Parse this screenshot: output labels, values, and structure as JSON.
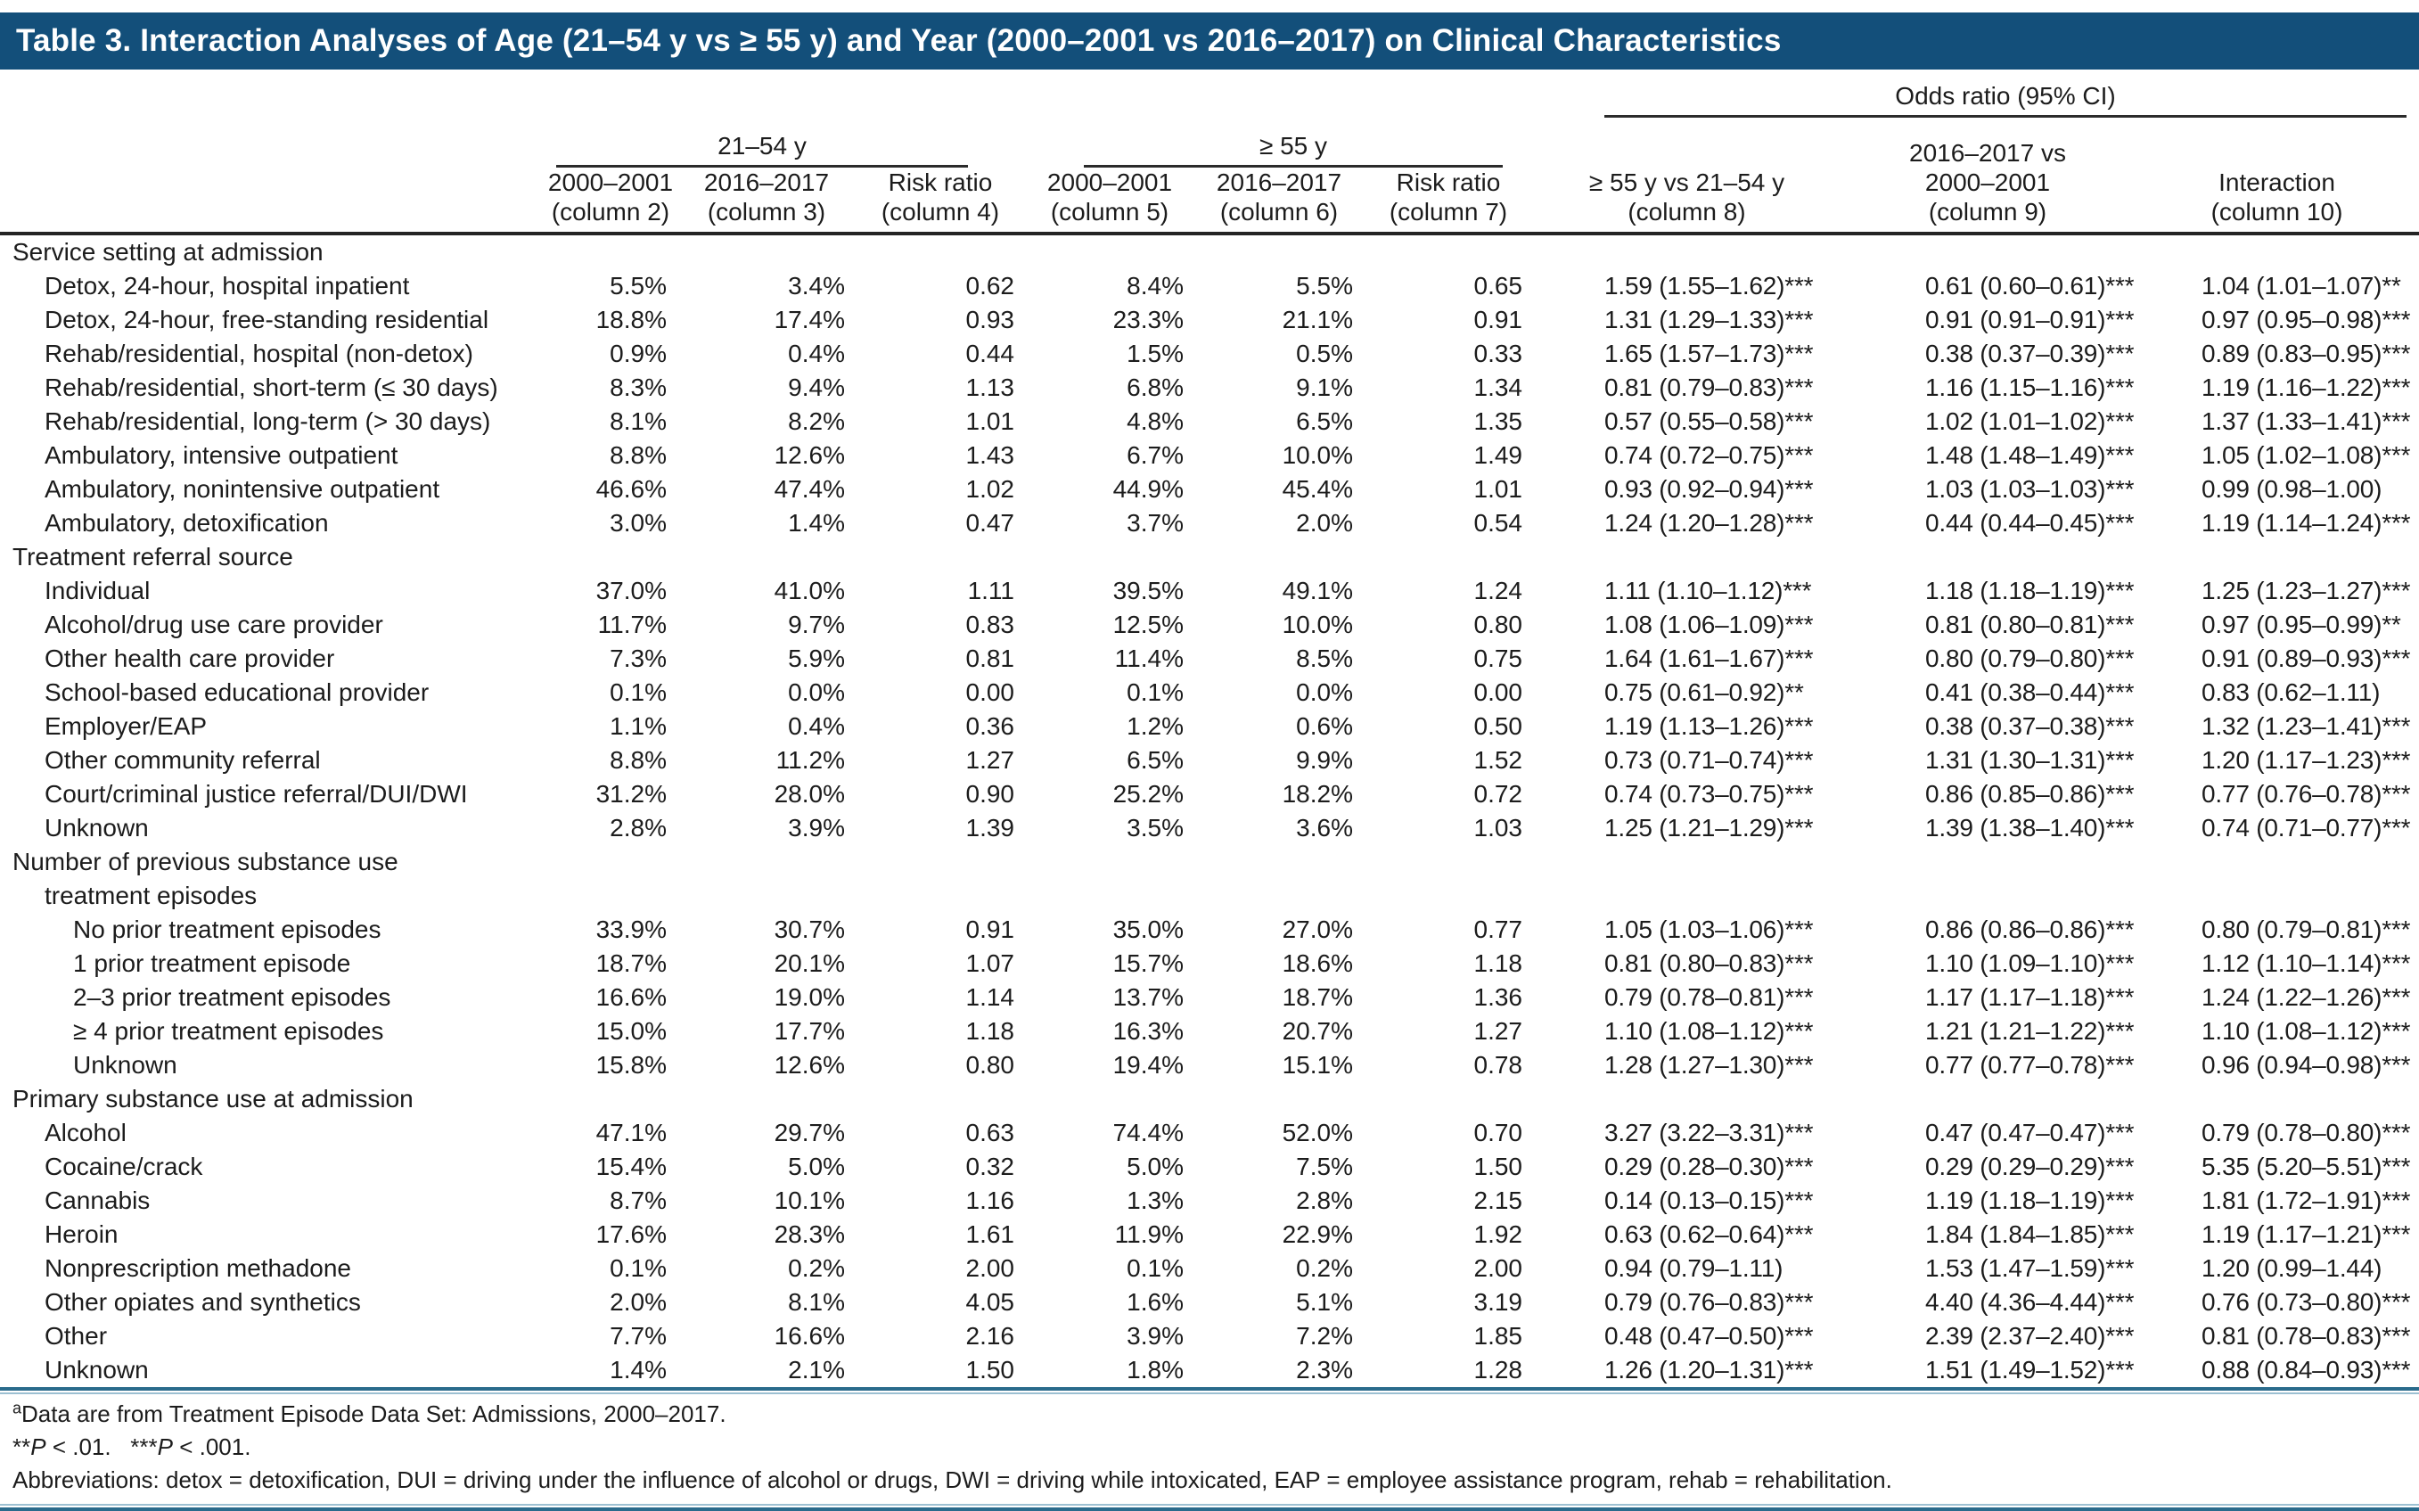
{
  "title": "Table 3. Interaction Analyses of Age (21–54 y vs ≥ 55 y) and Year (2000–2001 vs 2016–2017) on Clinical Characteristics",
  "header": {
    "odds_ratio_group": "Odds ratio (95% CI)",
    "age_group_21_54": "21–54 y",
    "age_group_55": "≥ 55 y",
    "columns": [
      {
        "lines": [
          "2000–2001",
          "(column 2)"
        ]
      },
      {
        "lines": [
          "2016–2017",
          "(column 3)"
        ]
      },
      {
        "lines": [
          "Risk ratio",
          "(column 4)"
        ]
      },
      {
        "lines": [
          "2000–2001",
          "(column 5)"
        ]
      },
      {
        "lines": [
          "2016–2017",
          "(column 6)"
        ]
      },
      {
        "lines": [
          "Risk ratio",
          "(column 7)"
        ]
      },
      {
        "lines": [
          "≥ 55 y vs 21–54 y",
          "(column 8)"
        ]
      },
      {
        "lines": [
          "2016–2017 vs",
          "2000–2001",
          "(column 9)"
        ]
      },
      {
        "lines": [
          "Interaction",
          "(column 10)"
        ]
      }
    ]
  },
  "sections": [
    {
      "label_lines": [
        "Service setting at admission"
      ],
      "row_indent": 1,
      "rows": [
        {
          "label": "Detox, 24-hour, hospital inpatient",
          "values": [
            "5.5%",
            "3.4%",
            "0.62",
            "8.4%",
            "5.5%",
            "0.65",
            "1.59 (1.55–1.62)***",
            "0.61 (0.60–0.61)***",
            "1.04 (1.01–1.07)**"
          ]
        },
        {
          "label": "Detox, 24-hour, free-standing residential",
          "values": [
            "18.8%",
            "17.4%",
            "0.93",
            "23.3%",
            "21.1%",
            "0.91",
            "1.31 (1.29–1.33)***",
            "0.91 (0.91–0.91)***",
            "0.97 (0.95–0.98)***"
          ]
        },
        {
          "label": "Rehab/residential, hospital (non-detox)",
          "values": [
            "0.9%",
            "0.4%",
            "0.44",
            "1.5%",
            "0.5%",
            "0.33",
            "1.65 (1.57–1.73)***",
            "0.38 (0.37–0.39)***",
            "0.89 (0.83–0.95)***"
          ]
        },
        {
          "label": "Rehab/residential, short-term (≤ 30 days)",
          "values": [
            "8.3%",
            "9.4%",
            "1.13",
            "6.8%",
            "9.1%",
            "1.34",
            "0.81 (0.79–0.83)***",
            "1.16 (1.15–1.16)***",
            "1.19 (1.16–1.22)***"
          ]
        },
        {
          "label": "Rehab/residential, long-term (> 30 days)",
          "values": [
            "8.1%",
            "8.2%",
            "1.01",
            "4.8%",
            "6.5%",
            "1.35",
            "0.57 (0.55–0.58)***",
            "1.02 (1.01–1.02)***",
            "1.37 (1.33–1.41)***"
          ]
        },
        {
          "label": "Ambulatory, intensive outpatient",
          "values": [
            "8.8%",
            "12.6%",
            "1.43",
            "6.7%",
            "10.0%",
            "1.49",
            "0.74 (0.72–0.75)***",
            "1.48 (1.48–1.49)***",
            "1.05 (1.02–1.08)***"
          ]
        },
        {
          "label": "Ambulatory, nonintensive outpatient",
          "values": [
            "46.6%",
            "47.4%",
            "1.02",
            "44.9%",
            "45.4%",
            "1.01",
            "0.93 (0.92–0.94)***",
            "1.03 (1.03–1.03)***",
            "0.99 (0.98–1.00)"
          ]
        },
        {
          "label": "Ambulatory, detoxification",
          "values": [
            "3.0%",
            "1.4%",
            "0.47",
            "3.7%",
            "2.0%",
            "0.54",
            "1.24 (1.20–1.28)***",
            "0.44 (0.44–0.45)***",
            "1.19 (1.14–1.24)***"
          ]
        }
      ]
    },
    {
      "label_lines": [
        "Treatment referral source"
      ],
      "row_indent": 1,
      "rows": [
        {
          "label": "Individual",
          "values": [
            "37.0%",
            "41.0%",
            "1.11",
            "39.5%",
            "49.1%",
            "1.24",
            "1.11 (1.10–1.12)***",
            "1.18 (1.18–1.19)***",
            "1.25 (1.23–1.27)***"
          ]
        },
        {
          "label": "Alcohol/drug use care provider",
          "values": [
            "11.7%",
            "9.7%",
            "0.83",
            "12.5%",
            "10.0%",
            "0.80",
            "1.08 (1.06–1.09)***",
            "0.81 (0.80–0.81)***",
            "0.97 (0.95–0.99)**"
          ]
        },
        {
          "label": "Other health care provider",
          "values": [
            "7.3%",
            "5.9%",
            "0.81",
            "11.4%",
            "8.5%",
            "0.75",
            "1.64 (1.61–1.67)***",
            "0.80 (0.79–0.80)***",
            "0.91 (0.89–0.93)***"
          ]
        },
        {
          "label": "School-based educational provider",
          "values": [
            "0.1%",
            "0.0%",
            "0.00",
            "0.1%",
            "0.0%",
            "0.00",
            "0.75 (0.61–0.92)**",
            "0.41 (0.38–0.44)***",
            "0.83 (0.62–1.11)"
          ]
        },
        {
          "label": "Employer/EAP",
          "values": [
            "1.1%",
            "0.4%",
            "0.36",
            "1.2%",
            "0.6%",
            "0.50",
            "1.19 (1.13–1.26)***",
            "0.38 (0.37–0.38)***",
            "1.32 (1.23–1.41)***"
          ]
        },
        {
          "label": "Other community referral",
          "values": [
            "8.8%",
            "11.2%",
            "1.27",
            "6.5%",
            "9.9%",
            "1.52",
            "0.73 (0.71–0.74)***",
            "1.31 (1.30–1.31)***",
            "1.20 (1.17–1.23)***"
          ]
        },
        {
          "label": "Court/criminal justice referral/DUI/DWI",
          "values": [
            "31.2%",
            "28.0%",
            "0.90",
            "25.2%",
            "18.2%",
            "0.72",
            "0.74 (0.73–0.75)***",
            "0.86 (0.85–0.86)***",
            "0.77 (0.76–0.78)***"
          ]
        },
        {
          "label": "Unknown",
          "values": [
            "2.8%",
            "3.9%",
            "1.39",
            "3.5%",
            "3.6%",
            "1.03",
            "1.25 (1.21–1.29)***",
            "1.39 (1.38–1.40)***",
            "0.74 (0.71–0.77)***"
          ]
        }
      ]
    },
    {
      "label_lines": [
        "Number of previous substance use",
        "treatment episodes"
      ],
      "row_indent": 2,
      "rows": [
        {
          "label": "No prior treatment episodes",
          "values": [
            "33.9%",
            "30.7%",
            "0.91",
            "35.0%",
            "27.0%",
            "0.77",
            "1.05 (1.03–1.06)***",
            "0.86 (0.86–0.86)***",
            "0.80 (0.79–0.81)***"
          ]
        },
        {
          "label": "1 prior treatment episode",
          "values": [
            "18.7%",
            "20.1%",
            "1.07",
            "15.7%",
            "18.6%",
            "1.18",
            "0.81 (0.80–0.83)***",
            "1.10 (1.09–1.10)***",
            "1.12 (1.10–1.14)***"
          ]
        },
        {
          "label": "2–3 prior treatment episodes",
          "values": [
            "16.6%",
            "19.0%",
            "1.14",
            "13.7%",
            "18.7%",
            "1.36",
            "0.79 (0.78–0.81)***",
            "1.17 (1.17–1.18)***",
            "1.24 (1.22–1.26)***"
          ]
        },
        {
          "label": "≥ 4 prior treatment episodes",
          "values": [
            "15.0%",
            "17.7%",
            "1.18",
            "16.3%",
            "20.7%",
            "1.27",
            "1.10 (1.08–1.12)***",
            "1.21 (1.21–1.22)***",
            "1.10 (1.08–1.12)***"
          ]
        },
        {
          "label": "Unknown",
          "values": [
            "15.8%",
            "12.6%",
            "0.80",
            "19.4%",
            "15.1%",
            "0.78",
            "1.28 (1.27–1.30)***",
            "0.77 (0.77–0.78)***",
            "0.96 (0.94–0.98)***"
          ]
        }
      ]
    },
    {
      "label_lines": [
        "Primary substance use at admission"
      ],
      "row_indent": 1,
      "rows": [
        {
          "label": "Alcohol",
          "values": [
            "47.1%",
            "29.7%",
            "0.63",
            "74.4%",
            "52.0%",
            "0.70",
            "3.27 (3.22–3.31)***",
            "0.47 (0.47–0.47)***",
            "0.79 (0.78–0.80)***"
          ]
        },
        {
          "label": "Cocaine/crack",
          "values": [
            "15.4%",
            "5.0%",
            "0.32",
            "5.0%",
            "7.5%",
            "1.50",
            "0.29 (0.28–0.30)***",
            "0.29 (0.29–0.29)***",
            "5.35 (5.20–5.51)***"
          ]
        },
        {
          "label": "Cannabis",
          "values": [
            "8.7%",
            "10.1%",
            "1.16",
            "1.3%",
            "2.8%",
            "2.15",
            "0.14 (0.13–0.15)***",
            "1.19 (1.18–1.19)***",
            "1.81 (1.72–1.91)***"
          ]
        },
        {
          "label": "Heroin",
          "values": [
            "17.6%",
            "28.3%",
            "1.61",
            "11.9%",
            "22.9%",
            "1.92",
            "0.63 (0.62–0.64)***",
            "1.84 (1.84–1.85)***",
            "1.19 (1.17–1.21)***"
          ]
        },
        {
          "label": "Nonprescription methadone",
          "values": [
            "0.1%",
            "0.2%",
            "2.00",
            "0.1%",
            "0.2%",
            "2.00",
            "0.94 (0.79–1.11)",
            "1.53 (1.47–1.59)***",
            "1.20 (0.99–1.44)"
          ]
        },
        {
          "label": "Other opiates and synthetics",
          "values": [
            "2.0%",
            "8.1%",
            "4.05",
            "1.6%",
            "5.1%",
            "3.19",
            "0.79 (0.76–0.83)***",
            "4.40 (4.36–4.44)***",
            "0.76 (0.73–0.80)***"
          ]
        },
        {
          "label": "Other",
          "values": [
            "7.7%",
            "16.6%",
            "2.16",
            "3.9%",
            "7.2%",
            "1.85",
            "0.48 (0.47–0.50)***",
            "2.39 (2.37–2.40)***",
            "0.81 (0.78–0.83)***"
          ]
        },
        {
          "label": "Unknown",
          "values": [
            "1.4%",
            "2.1%",
            "1.50",
            "1.8%",
            "2.3%",
            "1.28",
            "1.26 (1.20–1.31)***",
            "1.51 (1.49–1.52)***",
            "0.88 (0.84–0.93)***"
          ]
        }
      ]
    }
  ],
  "footnotes": {
    "source": {
      "sup": "a",
      "text": "Data are from Treatment Episode Data Set: Admissions, 2000–2017."
    },
    "pvalues": {
      "s1": "**",
      "p1": "P",
      "r1": " < .01.   ",
      "s2": "***",
      "p2": "P",
      "r2": " < .001."
    },
    "abbreviations": "Abbreviations: detox = detoxification, DUI = driving under the influence of alcohol or drugs, DWI = driving while intoxicated, EAP = employee assistance program, rehab = rehabilitation."
  },
  "colors": {
    "title_bar": "#134F7A",
    "rule_dark_blue": "#2A6B8C",
    "rule_light_blue": "#9CC0D2",
    "header_rule_black": "#242424"
  }
}
